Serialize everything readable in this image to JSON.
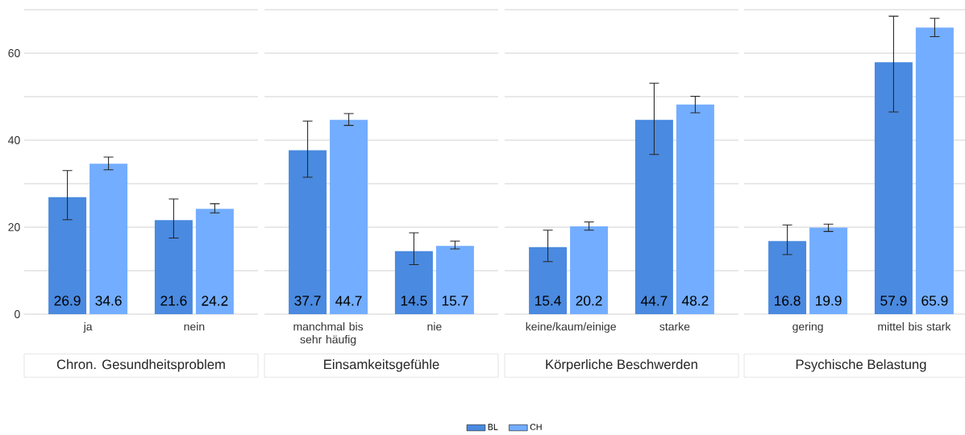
{
  "chart_data": [
    {
      "type": "bar",
      "title": "Chron. Gesundheitsproblem",
      "categories": [
        "ja",
        "nein"
      ],
      "series": [
        {
          "name": "BL",
          "color": "#4a8ae0",
          "values": [
            26.9,
            21.6
          ],
          "errors": [
            [
              21.7,
              33.0
            ],
            [
              17.5,
              26.5
            ]
          ]
        },
        {
          "name": "CH",
          "color": "#73adff",
          "values": [
            34.6,
            24.2
          ],
          "errors": [
            [
              33.2,
              36.1
            ],
            [
              23.3,
              25.4
            ]
          ]
        }
      ],
      "ylim": [
        0,
        70
      ],
      "yticks": [
        0,
        {
          "value": 10,
          "label": null
        },
        20,
        {
          "value": 30,
          "label": null
        },
        40,
        {
          "value": 50,
          "label": null
        },
        60,
        {
          "value": 70,
          "label": null
        }
      ],
      "grid": "y",
      "data_labels": true,
      "legend": "bottom"
    },
    {
      "type": "bar",
      "title": "Einsamkeitsgefühle",
      "categories": [
        "manchmal bis sehr häufig",
        "nie"
      ],
      "series": [
        {
          "color": "#4a8ae0",
          "values": [
            37.7,
            14.5
          ],
          "errors": [
            [
              31.5,
              44.4
            ],
            [
              11.4,
              18.7
            ]
          ]
        },
        {
          "color": "#73adff",
          "values": [
            44.7,
            15.7
          ],
          "errors": [
            [
              43.4,
              46.1
            ],
            [
              15.0,
              16.8
            ]
          ]
        }
      ],
      "ylim": [
        0,
        70
      ],
      "yticks": [
        0,
        {
          "value": 10,
          "label": null
        },
        20,
        {
          "value": 30,
          "label": null
        },
        40,
        {
          "value": 50,
          "label": null
        },
        60,
        {
          "value": 70,
          "label": null
        }
      ],
      "grid": "y",
      "data_labels": true,
      "tick_labels": "x"
    },
    {
      "type": "bar",
      "title": "Körperliche Beschwerden",
      "categories": [
        "keine/kaum/einige",
        "starke"
      ],
      "series": [
        {
          "color": "#4a8ae0",
          "values": [
            15.4,
            44.7
          ],
          "errors": [
            [
              12.1,
              19.3
            ],
            [
              36.7,
              53.1
            ]
          ]
        },
        {
          "color": "#73adff",
          "values": [
            20.2,
            48.2
          ],
          "errors": [
            [
              19.3,
              21.2
            ],
            [
              46.3,
              50.1
            ]
          ]
        }
      ],
      "ylim": [
        0,
        70
      ],
      "yticks": [
        0,
        {
          "value": 10,
          "label": null
        },
        20,
        {
          "value": 30,
          "label": null
        },
        40,
        {
          "value": 50,
          "label": null
        },
        60,
        {
          "value": 70,
          "label": null
        }
      ],
      "grid": "y",
      "data_labels": true,
      "tick_labels": "x"
    },
    {
      "type": "bar",
      "title": "Psychische Belastung",
      "categories": [
        "gering",
        "mittel bis stark"
      ],
      "series": [
        {
          "color": "#4a8ae0",
          "values": [
            16.8,
            57.9
          ],
          "errors": [
            [
              13.7,
              20.5
            ],
            [
              46.5,
              68.5
            ]
          ]
        },
        {
          "color": "#73adff",
          "values": [
            19.9,
            65.9
          ],
          "errors": [
            [
              19.0,
              20.7
            ],
            [
              63.8,
              68.0
            ]
          ]
        }
      ],
      "ylim": [
        0,
        70
      ],
      "yticks": [
        0,
        {
          "value": 10,
          "label": null
        },
        20,
        {
          "value": 30,
          "label": null
        },
        40,
        {
          "value": 50,
          "label": null
        },
        60,
        {
          "value": 70,
          "label": null
        }
      ],
      "grid": "y",
      "data_labels": true,
      "tick_labels": "x"
    }
  ]
}
